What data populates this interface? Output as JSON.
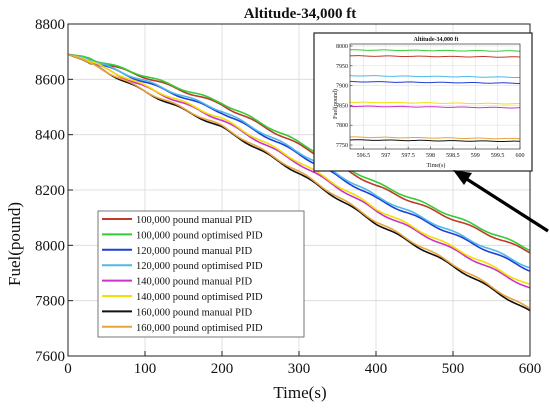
{
  "chart_data": {
    "type": "line",
    "title": "Altitude-34,000 ft",
    "xlabel": "Time(s)",
    "ylabel": "Fuel(pound)",
    "xlim": [
      0,
      600
    ],
    "ylim": [
      7600,
      8800
    ],
    "x_ticks": [
      0,
      100,
      200,
      300,
      400,
      500,
      600
    ],
    "y_ticks": [
      7600,
      7800,
      8000,
      8200,
      8400,
      8600,
      8800
    ],
    "grid": true,
    "legend_position": "bottom-left",
    "x": [
      0,
      20,
      100,
      200,
      300,
      400,
      500,
      600
    ],
    "series": [
      {
        "name": "100,000 pound manual PID",
        "color": "#c0392b",
        "values": [
          8690,
          8682,
          8608,
          8508,
          8363,
          8215,
          8095,
          7975
        ]
      },
      {
        "name": "100,000 pound optimised PID",
        "color": "#33cc33",
        "values": [
          8690,
          8683,
          8613,
          8515,
          8372,
          8226,
          8106,
          7985
        ]
      },
      {
        "name": "120,000 pound manual PID",
        "color": "#1f3fd6",
        "values": [
          8690,
          8678,
          8590,
          8480,
          8330,
          8170,
          8040,
          7910
        ]
      },
      {
        "name": "120,000 pound optimised PID",
        "color": "#4fb8e8",
        "values": [
          8690,
          8679,
          8594,
          8486,
          8337,
          8178,
          8048,
          7920
        ]
      },
      {
        "name": "140,000 pound manual PID",
        "color": "#cc33cc",
        "values": [
          8690,
          8674,
          8572,
          8452,
          8295,
          8125,
          7985,
          7845
        ]
      },
      {
        "name": "140,000 pound optimised PID",
        "color": "#f2e000",
        "values": [
          8690,
          8675,
          8576,
          8458,
          8302,
          8133,
          7993,
          7855
        ]
      },
      {
        "name": "160,000 pound manual PID",
        "color": "#111111",
        "values": [
          8690,
          8670,
          8555,
          8425,
          8260,
          8080,
          7925,
          7760
        ]
      },
      {
        "name": "160,000 pound optimised PID",
        "color": "#e8a33c",
        "values": [
          8690,
          8671,
          8558,
          8430,
          8266,
          8087,
          7932,
          7768
        ]
      }
    ],
    "inset": {
      "title": "Altitude-34,000 ft",
      "xlabel": "Time(s)",
      "ylabel": "Fuel(pound)",
      "xlim": [
        596.2,
        600
      ],
      "ylim": [
        7740,
        8005
      ],
      "x_ticks": [
        596.5,
        597,
        597.5,
        598,
        598.5,
        599,
        599.5,
        600
      ],
      "x_tick_labels": [
        "596.5",
        "597",
        "597.5",
        "598",
        "598.5",
        "599",
        "599.5",
        "600"
      ],
      "y_ticks": [
        7750,
        7800,
        7850,
        7900,
        7950,
        8000
      ],
      "x": [
        596.2,
        600
      ],
      "series_values": [
        [
          7975,
          7972
        ],
        [
          7990,
          7987
        ],
        [
          7910,
          7906
        ],
        [
          7925,
          7921
        ],
        [
          7848,
          7844
        ],
        [
          7858,
          7854
        ],
        [
          7763,
          7759
        ],
        [
          7770,
          7766
        ]
      ]
    }
  }
}
